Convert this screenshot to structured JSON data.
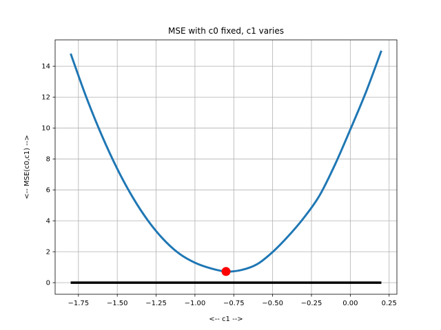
{
  "chart_data": {
    "type": "line",
    "title": "MSE with c0 fixed, c1 varies",
    "xlabel": "<-- c1 -->",
    "ylabel": "<-- MSE(c0,c1) -->",
    "xlim": [
      -1.9,
      0.3
    ],
    "ylim": [
      -0.75,
      15.7
    ],
    "xticks": [
      -1.75,
      -1.5,
      -1.25,
      -1.0,
      -0.75,
      -0.5,
      -0.25,
      0.0,
      0.25
    ],
    "xtick_labels": [
      "−1.75",
      "−1.50",
      "−1.25",
      "−1.00",
      "−0.75",
      "−0.50",
      "−0.25",
      "0.00",
      "0.25"
    ],
    "yticks": [
      0,
      2,
      4,
      6,
      8,
      10,
      12,
      14
    ],
    "ytick_labels": [
      "0",
      "2",
      "4",
      "6",
      "8",
      "10",
      "12",
      "14"
    ],
    "grid": true,
    "series": [
      {
        "kind": "curve",
        "color": "#1f77b4",
        "x": [
          -1.8,
          -1.7,
          -1.6,
          -1.5,
          -1.4,
          -1.3,
          -1.2,
          -1.1,
          -1.0,
          -0.9,
          -0.8,
          -0.7,
          -0.6,
          -0.5,
          -0.4,
          -0.3,
          -0.2,
          -0.1,
          0.0,
          0.1,
          0.2
        ],
        "y": [
          14.81,
          12.01,
          9.53,
          7.36,
          5.51,
          3.98,
          2.77,
          1.87,
          1.29,
          0.93,
          0.72,
          0.82,
          1.19,
          1.98,
          3.0,
          4.18,
          5.6,
          7.6,
          9.9,
          12.3,
          15.0
        ]
      },
      {
        "kind": "baseline",
        "color": "#000000",
        "x": [
          -1.8,
          0.2
        ],
        "y": [
          0.0,
          0.0
        ]
      },
      {
        "kind": "marker",
        "color": "#ff0000",
        "x": [
          -0.8
        ],
        "y": [
          0.72
        ]
      }
    ]
  }
}
